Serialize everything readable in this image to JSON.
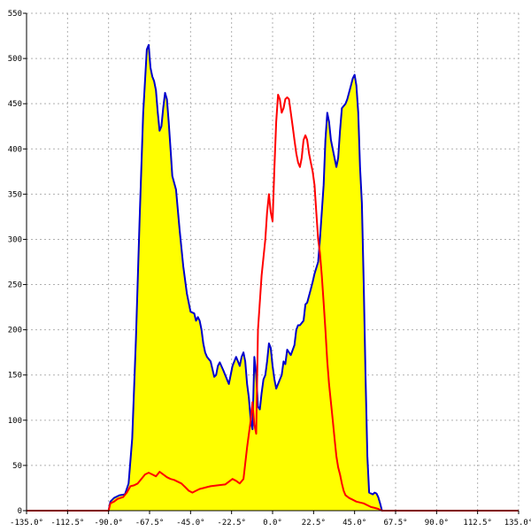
{
  "chart_data": {
    "type": "area",
    "title": "",
    "xlabel": "",
    "ylabel": "",
    "xlim": [
      -135,
      135
    ],
    "ylim": [
      0,
      550
    ],
    "grid": true,
    "x_ticks": [
      -135,
      -112.5,
      -90,
      -67.5,
      -45,
      -22.5,
      0,
      22.5,
      45,
      67.5,
      90,
      112.5,
      135
    ],
    "x_tick_labels": [
      "-135.0°",
      "-112.5°",
      "-90.0°",
      "-67.5°",
      "-45.0°",
      "-22.5°",
      "0.0°",
      "22.5°",
      "45.0°",
      "67.5°",
      "90.0°",
      "112.5°",
      "135.0°"
    ],
    "y_ticks": [
      0,
      50,
      100,
      150,
      200,
      250,
      300,
      350,
      400,
      450,
      500,
      550
    ],
    "y_tick_labels": [
      "0",
      "50",
      "100",
      "150",
      "200",
      "250",
      "300",
      "350",
      "400",
      "450",
      "500",
      "550"
    ],
    "series": [
      {
        "color": "#0000cc",
        "fill": "#ffff00",
        "points": [
          [
            -135,
            0
          ],
          [
            -90,
            0
          ],
          [
            -89,
            10
          ],
          [
            -87,
            14
          ],
          [
            -84,
            17
          ],
          [
            -81,
            18
          ],
          [
            -79,
            30
          ],
          [
            -77,
            80
          ],
          [
            -75,
            190
          ],
          [
            -73,
            320
          ],
          [
            -71,
            440
          ],
          [
            -69,
            510
          ],
          [
            -68,
            515
          ],
          [
            -67,
            490
          ],
          [
            -66,
            480
          ],
          [
            -65,
            475
          ],
          [
            -64,
            465
          ],
          [
            -63,
            440
          ],
          [
            -62,
            420
          ],
          [
            -61,
            425
          ],
          [
            -60,
            445
          ],
          [
            -59,
            462
          ],
          [
            -58,
            455
          ],
          [
            -57,
            430
          ],
          [
            -56,
            400
          ],
          [
            -55,
            370
          ],
          [
            -53,
            355
          ],
          [
            -51,
            310
          ],
          [
            -49,
            270
          ],
          [
            -47,
            240
          ],
          [
            -45,
            220
          ],
          [
            -43,
            218
          ],
          [
            -42,
            210
          ],
          [
            -41,
            214
          ],
          [
            -40,
            210
          ],
          [
            -39,
            200
          ],
          [
            -38,
            185
          ],
          [
            -37,
            175
          ],
          [
            -36,
            170
          ],
          [
            -34,
            165
          ],
          [
            -32,
            148
          ],
          [
            -31,
            150
          ],
          [
            -30,
            160
          ],
          [
            -29,
            164
          ],
          [
            -27,
            155
          ],
          [
            -25,
            145
          ],
          [
            -24,
            140
          ],
          [
            -22,
            160
          ],
          [
            -20,
            170
          ],
          [
            -19,
            165
          ],
          [
            -18,
            160
          ],
          [
            -17,
            170
          ],
          [
            -16,
            175
          ],
          [
            -15,
            165
          ],
          [
            -14,
            140
          ],
          [
            -13,
            125
          ],
          [
            -12,
            100
          ],
          [
            -11,
            90
          ],
          [
            -10,
            170
          ],
          [
            -9,
            150
          ],
          [
            -8,
            115
          ],
          [
            -7,
            112
          ],
          [
            -6,
            130
          ],
          [
            -5,
            145
          ],
          [
            -4,
            150
          ],
          [
            -3,
            165
          ],
          [
            -2,
            185
          ],
          [
            -1,
            180
          ],
          [
            0,
            160
          ],
          [
            1,
            145
          ],
          [
            2,
            135
          ],
          [
            3,
            140
          ],
          [
            5,
            150
          ],
          [
            6,
            165
          ],
          [
            7,
            162
          ],
          [
            8,
            178
          ],
          [
            9,
            175
          ],
          [
            10,
            172
          ],
          [
            12,
            183
          ],
          [
            13,
            200
          ],
          [
            14,
            205
          ],
          [
            15,
            205
          ],
          [
            17,
            210
          ],
          [
            18,
            228
          ],
          [
            19,
            230
          ],
          [
            21,
            245
          ],
          [
            22,
            253
          ],
          [
            23,
            262
          ],
          [
            25,
            275
          ],
          [
            26,
            300
          ],
          [
            27,
            330
          ],
          [
            28,
            360
          ],
          [
            29,
            410
          ],
          [
            30,
            440
          ],
          [
            31,
            430
          ],
          [
            32,
            410
          ],
          [
            34,
            390
          ],
          [
            35,
            380
          ],
          [
            36,
            390
          ],
          [
            37,
            420
          ],
          [
            38,
            445
          ],
          [
            40,
            450
          ],
          [
            41,
            455
          ],
          [
            43,
            470
          ],
          [
            44,
            478
          ],
          [
            45,
            482
          ],
          [
            46,
            470
          ],
          [
            47,
            440
          ],
          [
            48,
            380
          ],
          [
            49,
            340
          ],
          [
            50,
            250
          ],
          [
            51,
            150
          ],
          [
            52,
            60
          ],
          [
            53,
            20
          ],
          [
            55,
            18
          ],
          [
            56,
            20
          ],
          [
            57,
            19
          ],
          [
            58,
            15
          ],
          [
            59,
            8
          ],
          [
            60,
            0
          ],
          [
            135,
            0
          ]
        ]
      },
      {
        "color": "#ff0000",
        "fill": "none",
        "points": [
          [
            -135,
            0
          ],
          [
            -90,
            0
          ],
          [
            -89,
            8
          ],
          [
            -87,
            10
          ],
          [
            -85,
            13
          ],
          [
            -82,
            15
          ],
          [
            -80,
            20
          ],
          [
            -78,
            27
          ],
          [
            -76,
            28
          ],
          [
            -74,
            30
          ],
          [
            -72,
            35
          ],
          [
            -70,
            40
          ],
          [
            -68,
            42
          ],
          [
            -66,
            40
          ],
          [
            -64,
            38
          ],
          [
            -62,
            43
          ],
          [
            -60,
            40
          ],
          [
            -58,
            37
          ],
          [
            -56,
            35
          ],
          [
            -54,
            34
          ],
          [
            -52,
            32
          ],
          [
            -50,
            30
          ],
          [
            -48,
            26
          ],
          [
            -46,
            22
          ],
          [
            -44,
            20
          ],
          [
            -42,
            22
          ],
          [
            -40,
            24
          ],
          [
            -38,
            25
          ],
          [
            -36,
            26
          ],
          [
            -34,
            27
          ],
          [
            -30,
            28
          ],
          [
            -26,
            29
          ],
          [
            -22,
            35
          ],
          [
            -20,
            33
          ],
          [
            -18,
            30
          ],
          [
            -16,
            35
          ],
          [
            -14,
            70
          ],
          [
            -12,
            100
          ],
          [
            -11,
            120
          ],
          [
            -10,
            95
          ],
          [
            -9,
            85
          ],
          [
            -8,
            200
          ],
          [
            -6,
            260
          ],
          [
            -4,
            300
          ],
          [
            -3,
            330
          ],
          [
            -2,
            350
          ],
          [
            -1,
            330
          ],
          [
            0,
            320
          ],
          [
            1,
            380
          ],
          [
            2,
            430
          ],
          [
            3,
            460
          ],
          [
            4,
            455
          ],
          [
            5,
            440
          ],
          [
            6,
            445
          ],
          [
            7,
            455
          ],
          [
            8,
            457
          ],
          [
            9,
            455
          ],
          [
            10,
            440
          ],
          [
            11,
            425
          ],
          [
            12,
            410
          ],
          [
            13,
            395
          ],
          [
            14,
            385
          ],
          [
            15,
            380
          ],
          [
            16,
            390
          ],
          [
            17,
            410
          ],
          [
            18,
            415
          ],
          [
            19,
            410
          ],
          [
            20,
            395
          ],
          [
            21,
            385
          ],
          [
            22,
            375
          ],
          [
            23,
            360
          ],
          [
            24,
            330
          ],
          [
            25,
            300
          ],
          [
            26,
            285
          ],
          [
            27,
            260
          ],
          [
            28,
            230
          ],
          [
            29,
            200
          ],
          [
            30,
            165
          ],
          [
            31,
            140
          ],
          [
            32,
            120
          ],
          [
            33,
            100
          ],
          [
            34,
            80
          ],
          [
            35,
            60
          ],
          [
            36,
            48
          ],
          [
            37,
            40
          ],
          [
            38,
            30
          ],
          [
            39,
            22
          ],
          [
            40,
            17
          ],
          [
            42,
            14
          ],
          [
            44,
            12
          ],
          [
            46,
            10
          ],
          [
            48,
            9
          ],
          [
            50,
            8
          ],
          [
            52,
            6
          ],
          [
            54,
            4
          ],
          [
            56,
            3
          ],
          [
            58,
            2
          ],
          [
            60,
            0
          ],
          [
            135,
            0
          ]
        ]
      }
    ]
  }
}
